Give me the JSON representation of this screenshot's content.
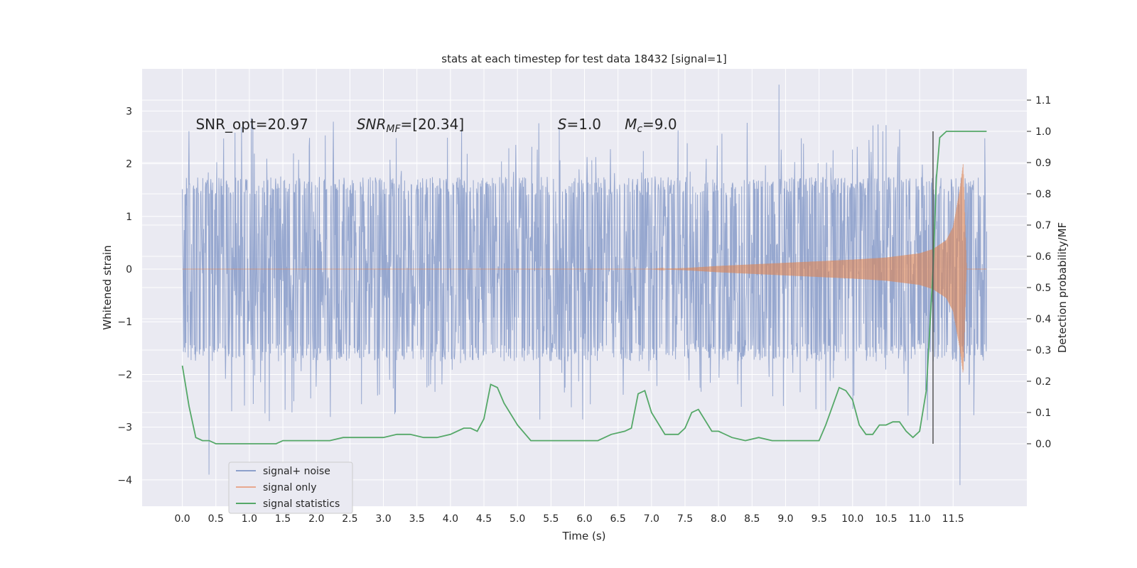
{
  "chart_data": {
    "type": "line",
    "title": "stats at each timestep for test data 18432 [signal=1]",
    "xlabel": "Time (s)",
    "ylabel": "Whitened strain",
    "y2label": "Detection probability/MF",
    "xlim": [
      -0.6,
      12.6
    ],
    "ylim": [
      -4.5,
      3.8
    ],
    "y2lim": [
      -0.2,
      1.2
    ],
    "xticks": [
      0.0,
      0.5,
      1.0,
      1.5,
      2.0,
      2.5,
      3.0,
      3.5,
      4.0,
      4.5,
      5.0,
      5.5,
      6.0,
      6.5,
      7.0,
      7.5,
      8.0,
      8.5,
      9.0,
      9.5,
      10.0,
      10.5,
      11.0,
      11.5
    ],
    "xtick_labels": [
      "0.0",
      "0.5",
      "1.0",
      "1.5",
      "2.0",
      "2.5",
      "3.0",
      "3.5",
      "4.0",
      "4.5",
      "5.0",
      "5.5",
      "6.0",
      "6.5",
      "7.0",
      "7.5",
      "8.0",
      "8.5",
      "9.0",
      "9.5",
      "10.0",
      "10.5",
      "11.0",
      "11.5"
    ],
    "yticks": [
      -4,
      -3,
      -2,
      -1,
      0,
      1,
      2,
      3
    ],
    "ytick_labels": [
      "−4",
      "−3",
      "−2",
      "−1",
      "0",
      "1",
      "2",
      "3"
    ],
    "y2ticks": [
      0.0,
      0.1,
      0.2,
      0.3,
      0.4,
      0.5,
      0.6,
      0.7,
      0.8,
      0.9,
      1.0,
      1.1
    ],
    "y2tick_labels": [
      "0.0",
      "0.1",
      "0.2",
      "0.3",
      "0.4",
      "0.5",
      "0.6",
      "0.7",
      "0.8",
      "0.9",
      "1.0",
      "1.1"
    ],
    "grid": true,
    "legend_position": "lower-left",
    "noise_range": [
      0.0,
      12.0
    ],
    "noise_typical_amplitude": 1.5,
    "noise_peak_max": 3.5,
    "noise_peak_min": -4.1,
    "signal_envelope": {
      "x": [
        0.0,
        7.0,
        7.5,
        8.0,
        9.0,
        10.0,
        10.5,
        11.0,
        11.2,
        11.4,
        11.5,
        11.6,
        11.65,
        11.7,
        12.0
      ],
      "amplitude": [
        0.0,
        0.0,
        0.02,
        0.06,
        0.12,
        0.18,
        0.22,
        0.3,
        0.38,
        0.55,
        0.8,
        1.5,
        2.0,
        0.0,
        0.0
      ]
    },
    "stat_series": {
      "x": [
        0.0,
        0.1,
        0.2,
        0.3,
        0.4,
        0.5,
        0.6,
        0.8,
        1.0,
        1.2,
        1.4,
        1.5,
        1.6,
        1.8,
        2.0,
        2.2,
        2.4,
        2.6,
        2.8,
        3.0,
        3.2,
        3.4,
        3.6,
        3.8,
        4.0,
        4.2,
        4.3,
        4.4,
        4.5,
        4.6,
        4.7,
        4.8,
        5.0,
        5.2,
        5.4,
        5.6,
        5.8,
        6.0,
        6.2,
        6.4,
        6.6,
        6.7,
        6.8,
        6.9,
        7.0,
        7.2,
        7.4,
        7.5,
        7.6,
        7.7,
        7.9,
        8.0,
        8.2,
        8.4,
        8.6,
        8.8,
        9.0,
        9.2,
        9.4,
        9.5,
        9.6,
        9.8,
        9.9,
        10.0,
        10.1,
        10.2,
        10.3,
        10.4,
        10.5,
        10.6,
        10.7,
        10.8,
        10.9,
        11.0,
        11.1,
        11.15,
        11.2,
        11.25,
        11.3,
        11.4,
        11.5,
        11.6,
        11.7,
        11.8,
        11.9,
        12.0
      ],
      "values": [
        0.25,
        0.12,
        0.02,
        0.01,
        0.01,
        0.0,
        0.0,
        0.0,
        0.0,
        0.0,
        0.0,
        0.01,
        0.01,
        0.01,
        0.01,
        0.01,
        0.02,
        0.02,
        0.02,
        0.02,
        0.03,
        0.03,
        0.02,
        0.02,
        0.03,
        0.05,
        0.05,
        0.04,
        0.08,
        0.19,
        0.18,
        0.13,
        0.06,
        0.01,
        0.01,
        0.01,
        0.01,
        0.01,
        0.01,
        0.03,
        0.04,
        0.05,
        0.16,
        0.17,
        0.1,
        0.03,
        0.03,
        0.05,
        0.1,
        0.11,
        0.04,
        0.04,
        0.02,
        0.01,
        0.02,
        0.01,
        0.01,
        0.01,
        0.01,
        0.01,
        0.06,
        0.18,
        0.17,
        0.14,
        0.06,
        0.03,
        0.03,
        0.06,
        0.06,
        0.07,
        0.07,
        0.04,
        0.02,
        0.04,
        0.17,
        0.36,
        0.56,
        0.85,
        0.98,
        1.0,
        1.0,
        1.0,
        1.0,
        1.0,
        1.0,
        1.0
      ]
    },
    "vline": {
      "x": 11.2,
      "ymin": 0.0,
      "ymax": 1.0
    },
    "annotations": [
      {
        "text": "SNR_opt=20.97",
        "x": 0.2,
        "y": 2.75
      },
      {
        "text": "SNR",
        "sub": "MF",
        "after": "=[20.34]",
        "x": 2.6,
        "y": 2.75
      },
      {
        "text": "S",
        "after": "=1.0",
        "x": 5.6,
        "y": 2.75
      },
      {
        "text": "M",
        "sub": "c",
        "after": "=9.0",
        "x": 6.6,
        "y": 2.75
      }
    ],
    "legend": [
      {
        "label": "signal+ noise",
        "color": "#8da0cb"
      },
      {
        "label": "signal only",
        "color": "#e8a88f"
      },
      {
        "label": "signal statistics",
        "color": "#55a868"
      }
    ],
    "colors": {
      "axes_bg": "#eaeaf2",
      "grid": "#ffffff",
      "noise": "#8da0cb",
      "signal": "#dd8452",
      "stats": "#55a868",
      "vline": "#555555"
    }
  }
}
